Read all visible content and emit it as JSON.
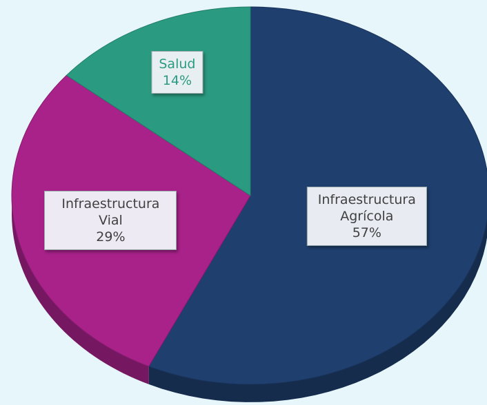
{
  "chart_data": {
    "type": "pie",
    "categories": [
      "Infraestructura Agrícola",
      "Infraestructura Vial",
      "Salud"
    ],
    "values": [
      57,
      29,
      14
    ],
    "value_labels": [
      "57%",
      "29%",
      "14%"
    ],
    "colors": [
      "#1f3f6e",
      "#a8228a",
      "#2a9b80"
    ]
  }
}
